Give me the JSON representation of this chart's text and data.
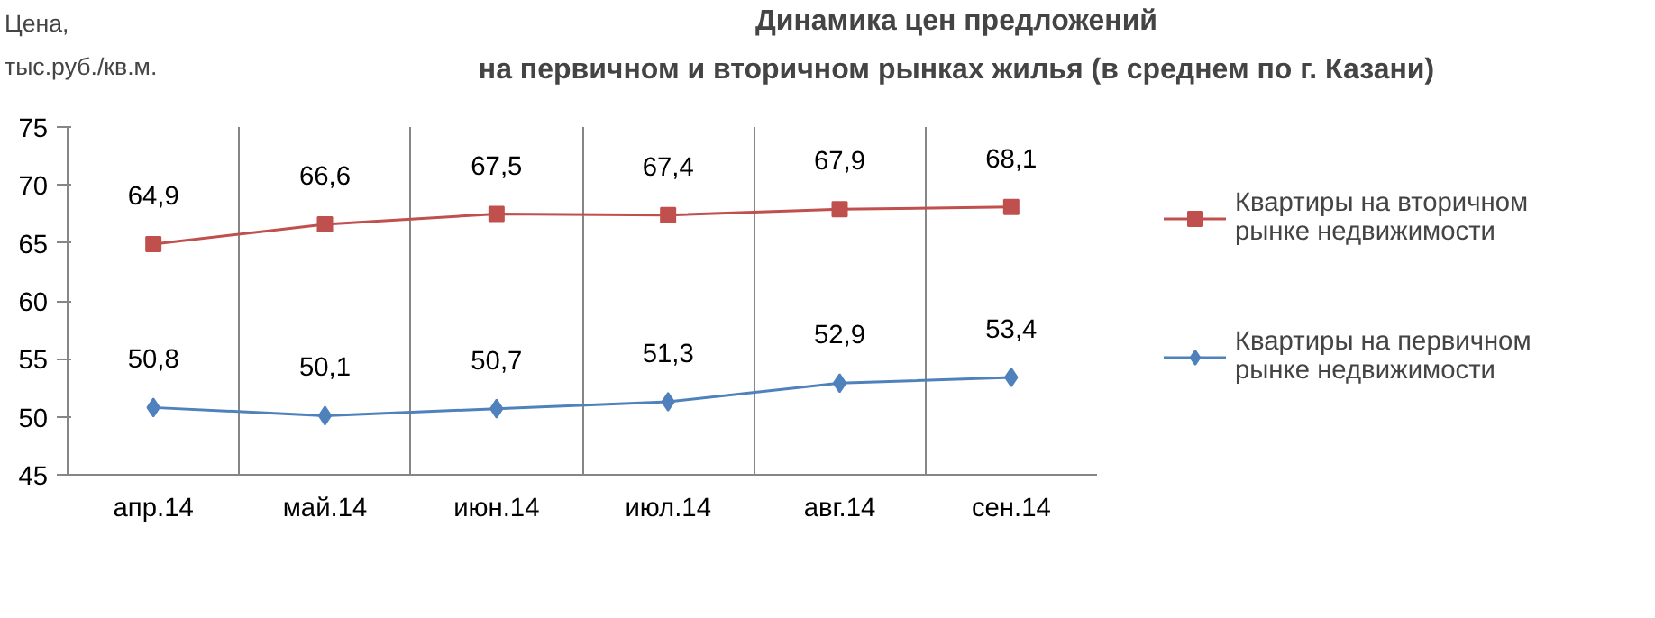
{
  "chart_data": {
    "type": "line",
    "title": "Динамика цен предложений\nна первичном и вторичном рынках жилья (в среднем по г. Казани)",
    "ylabel": "Цена,\nтыс.руб./кв.м.",
    "categories": [
      "апр.14",
      "май.14",
      "июн.14",
      "июл.14",
      "авг.14",
      "сен.14"
    ],
    "series": [
      {
        "name": "Квартиры на вторичном рынке недвижимости",
        "color": "#c0504d",
        "marker": "square",
        "values": [
          64.9,
          66.6,
          67.5,
          67.4,
          67.9,
          68.1
        ],
        "value_labels": [
          "64,9",
          "66,6",
          "67,5",
          "67,4",
          "67,9",
          "68,1"
        ]
      },
      {
        "name": "Квартиры на первичном рынке недвижимости",
        "color": "#4f81bd",
        "marker": "diamond",
        "values": [
          50.8,
          50.1,
          50.7,
          51.3,
          52.9,
          53.4
        ],
        "value_labels": [
          "50,8",
          "50,1",
          "50,7",
          "51,3",
          "52,9",
          "53,4"
        ]
      }
    ],
    "ylim": [
      45,
      75
    ],
    "yticks": [
      45,
      50,
      55,
      60,
      65,
      70,
      75
    ],
    "grid": "x",
    "legend": "right"
  }
}
